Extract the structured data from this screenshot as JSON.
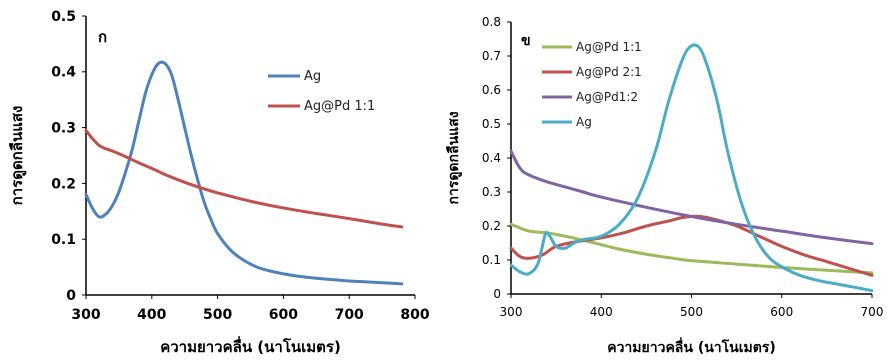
{
  "chart_data": [
    {
      "type": "line",
      "panel_label": "ก",
      "xlabel": "ความยาวคลื่น (นาโนเมตร)",
      "ylabel": "การดูดกลืนแสง",
      "xlim": [
        300,
        800
      ],
      "ylim": [
        0,
        0.5
      ],
      "xticks": [
        "300",
        "400",
        "500",
        "600",
        "700",
        "800"
      ],
      "yticks": [
        "0",
        "0.1",
        "0.2",
        "0.3",
        "0.4",
        "0.5"
      ],
      "grid": false,
      "legend_position": "top-right",
      "series": [
        {
          "name": "Ag",
          "color": "#4F81BD",
          "x": [
            300,
            310,
            320,
            330,
            340,
            350,
            360,
            370,
            380,
            390,
            400,
            410,
            420,
            430,
            440,
            450,
            460,
            470,
            480,
            490,
            500,
            520,
            540,
            560,
            580,
            600,
            620,
            650,
            680,
            700,
            720,
            750,
            780
          ],
          "y": [
            0.18,
            0.155,
            0.14,
            0.145,
            0.16,
            0.185,
            0.22,
            0.26,
            0.31,
            0.36,
            0.395,
            0.415,
            0.415,
            0.395,
            0.35,
            0.3,
            0.25,
            0.205,
            0.165,
            0.135,
            0.11,
            0.08,
            0.062,
            0.05,
            0.043,
            0.038,
            0.034,
            0.03,
            0.027,
            0.025,
            0.024,
            0.022,
            0.02
          ]
        },
        {
          "name": "Ag@Pd  1:1",
          "color": "#C0504D",
          "x": [
            300,
            310,
            320,
            330,
            340,
            360,
            380,
            400,
            420,
            450,
            480,
            500,
            550,
            600,
            650,
            700,
            750,
            780
          ],
          "y": [
            0.295,
            0.28,
            0.268,
            0.262,
            0.258,
            0.248,
            0.237,
            0.227,
            0.216,
            0.202,
            0.19,
            0.183,
            0.168,
            0.156,
            0.146,
            0.137,
            0.127,
            0.122
          ]
        }
      ]
    },
    {
      "type": "line",
      "panel_label": "ข",
      "xlabel": "ความยาวคลื่น (นาโนเมตร)",
      "ylabel": "การดูดกลืนแสง",
      "xlim": [
        300,
        700
      ],
      "ylim": [
        0,
        0.8
      ],
      "xticks": [
        "300",
        "400",
        "500",
        "600",
        "700"
      ],
      "yticks": [
        "0",
        "0.1",
        "0.2",
        "0.3",
        "0.4",
        "0.5",
        "0.6",
        "0.7",
        "0.8"
      ],
      "grid": false,
      "legend_position": "top-left",
      "series": [
        {
          "name": "Ag@Pd 1:1",
          "color": "#9BBB59",
          "x": [
            300,
            320,
            340,
            360,
            380,
            400,
            420,
            450,
            480,
            500,
            550,
            600,
            650,
            700
          ],
          "y": [
            0.205,
            0.185,
            0.18,
            0.17,
            0.158,
            0.145,
            0.132,
            0.117,
            0.105,
            0.098,
            0.088,
            0.078,
            0.07,
            0.062
          ]
        },
        {
          "name": "Ag@Pd 2:1",
          "color": "#C0504D",
          "x": [
            300,
            310,
            320,
            335,
            350,
            375,
            400,
            425,
            450,
            475,
            490,
            500,
            510,
            525,
            550,
            575,
            600,
            625,
            650,
            675,
            700
          ],
          "y": [
            0.135,
            0.11,
            0.105,
            0.115,
            0.14,
            0.155,
            0.165,
            0.18,
            0.2,
            0.215,
            0.225,
            0.228,
            0.228,
            0.22,
            0.2,
            0.17,
            0.14,
            0.115,
            0.095,
            0.075,
            0.055
          ]
        },
        {
          "name": "Ag@Pd1:2",
          "color": "#8064A2",
          "x": [
            300,
            310,
            320,
            340,
            360,
            380,
            400,
            450,
            500,
            550,
            600,
            650,
            700
          ],
          "y": [
            0.42,
            0.37,
            0.35,
            0.33,
            0.315,
            0.3,
            0.285,
            0.255,
            0.228,
            0.205,
            0.185,
            0.165,
            0.148
          ]
        },
        {
          "name": "Ag",
          "color": "#4BACC6",
          "x": [
            300,
            310,
            320,
            330,
            338,
            343,
            350,
            360,
            370,
            380,
            400,
            420,
            440,
            460,
            475,
            490,
            500,
            510,
            520,
            530,
            540,
            555,
            570,
            585,
            600,
            620,
            640,
            660,
            680,
            700
          ],
          "y": [
            0.085,
            0.065,
            0.06,
            0.09,
            0.175,
            0.17,
            0.14,
            0.135,
            0.15,
            0.16,
            0.17,
            0.205,
            0.28,
            0.42,
            0.57,
            0.69,
            0.73,
            0.72,
            0.65,
            0.55,
            0.42,
            0.27,
            0.17,
            0.11,
            0.08,
            0.055,
            0.04,
            0.03,
            0.02,
            0.01
          ]
        }
      ]
    }
  ]
}
